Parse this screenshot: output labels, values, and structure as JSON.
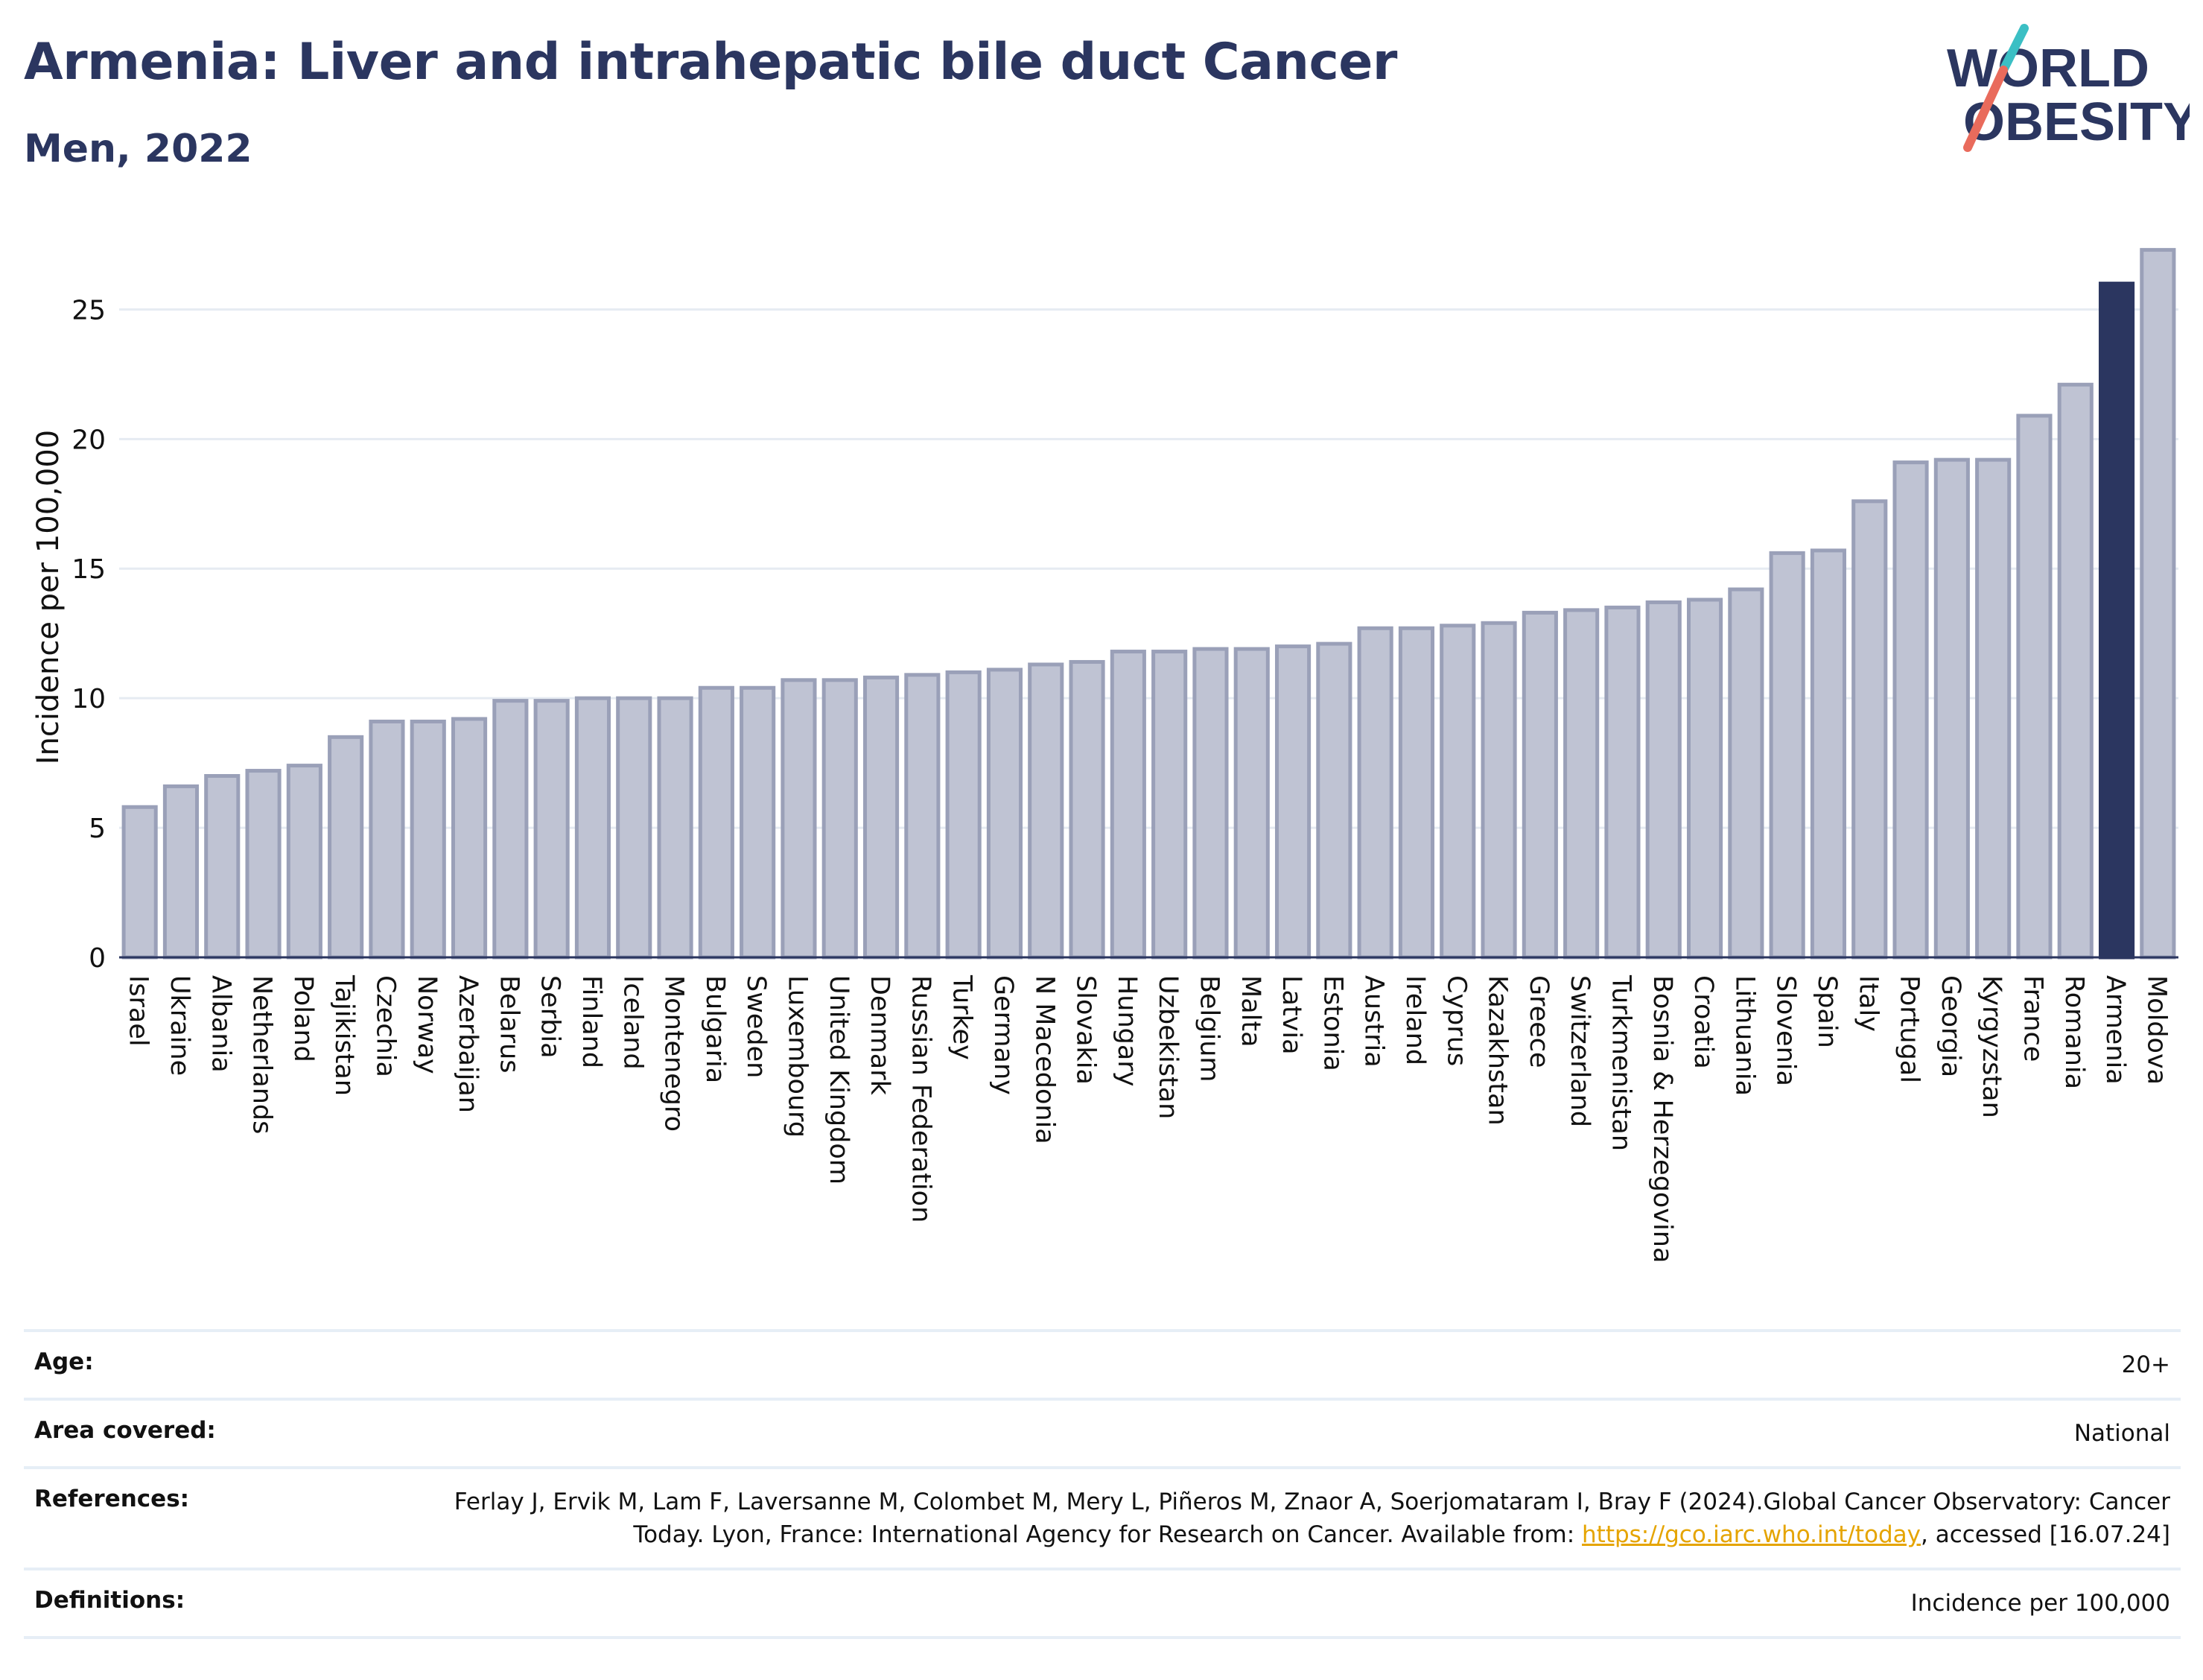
{
  "header": {
    "title": "Armenia: Liver and intrahepatic bile duct Cancer",
    "subtitle": "Men, 2022"
  },
  "logo": {
    "line1": "WORLD",
    "line2": "OBESITY",
    "colors": {
      "text": "#2b3660",
      "slash_teal": "#3bbfc4",
      "slash_coral": "#e96b5c"
    }
  },
  "colors": {
    "bar_fill": "#bfc3d3",
    "bar_stroke": "#9aa0b8",
    "highlight": "#2b3660",
    "grid": "#e6ebf2"
  },
  "chart_data": {
    "type": "bar",
    "categories": [
      "Israel",
      "Ukraine",
      "Albania",
      "Netherlands",
      "Poland",
      "Tajikistan",
      "Czechia",
      "Norway",
      "Azerbaijan",
      "Belarus",
      "Serbia",
      "Finland",
      "Iceland",
      "Montenegro",
      "Bulgaria",
      "Sweden",
      "Luxembourg",
      "United Kingdom",
      "Denmark",
      "Russian Federation",
      "Turkey",
      "Germany",
      "N Macedonia",
      "Slovakia",
      "Hungary",
      "Uzbekistan",
      "Belgium",
      "Malta",
      "Latvia",
      "Estonia",
      "Austria",
      "Ireland",
      "Cyprus",
      "Kazakhstan",
      "Greece",
      "Switzerland",
      "Turkmenistan",
      "Bosnia & Herzegovina",
      "Croatia",
      "Lithuania",
      "Slovenia",
      "Spain",
      "Italy",
      "Portugal",
      "Georgia",
      "Kyrgyzstan",
      "France",
      "Romania",
      "Armenia",
      "Moldova"
    ],
    "values": [
      5.8,
      6.6,
      7.0,
      7.2,
      7.4,
      8.5,
      9.1,
      9.1,
      9.2,
      9.9,
      9.9,
      10.0,
      10.0,
      10.0,
      10.4,
      10.4,
      10.7,
      10.7,
      10.8,
      10.9,
      11.0,
      11.1,
      11.3,
      11.4,
      11.8,
      11.8,
      11.9,
      11.9,
      12.0,
      12.1,
      12.7,
      12.7,
      12.8,
      12.9,
      13.3,
      13.4,
      13.5,
      13.7,
      13.8,
      14.2,
      15.6,
      15.7,
      17.6,
      19.1,
      19.2,
      19.2,
      20.9,
      22.1,
      26.0,
      27.3
    ],
    "highlight": "Armenia",
    "ylabel": "Incidence per 100,000",
    "xlabel": "",
    "ylim": [
      0,
      27.8
    ],
    "yticks": [
      0,
      5,
      10,
      15,
      20,
      25
    ],
    "grid": true
  },
  "info": [
    {
      "key": "Age:",
      "value": "20+"
    },
    {
      "key": "Area covered:",
      "value": "National"
    },
    {
      "key": "References:",
      "value_before": "Ferlay J, Ervik M, Lam F, Laversanne M, Colombet M, Mery L, Piñeros M, Znaor A, Soerjomataram I, Bray F (2024).Global Cancer Observatory: Cancer Today. Lyon, France: International Agency for Research on Cancer. Available from: ",
      "link": "https://gco.iarc.who.int/today",
      "value_after": ", accessed [16.07.24]"
    },
    {
      "key": "Definitions:",
      "value": "Incidence per 100,000"
    }
  ]
}
